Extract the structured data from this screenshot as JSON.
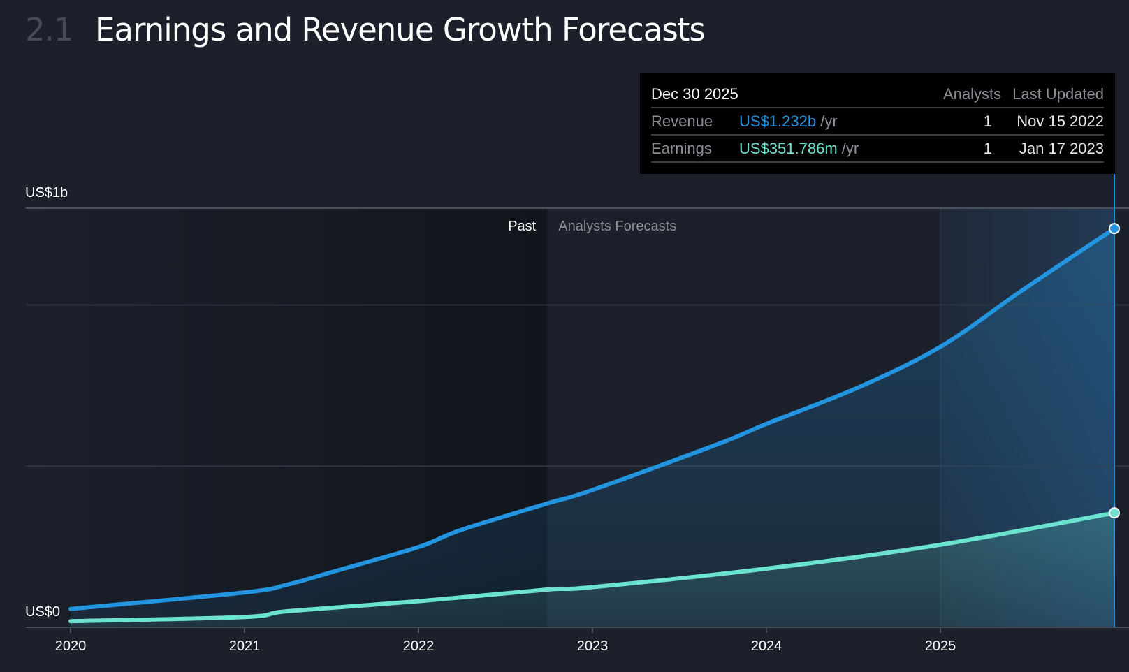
{
  "header": {
    "section_number": "2.1",
    "title": "Earnings and Revenue Growth Forecasts"
  },
  "tooltip": {
    "date": "Dec 30 2025",
    "col_analysts": "Analysts",
    "col_last_updated": "Last Updated",
    "rows": [
      {
        "label": "Revenue",
        "value": "US$1.232b",
        "unit": "/yr",
        "analysts": "1",
        "last_updated": "Nov 15 2022"
      },
      {
        "label": "Earnings",
        "value": "US$351.786m",
        "unit": "/yr",
        "analysts": "1",
        "last_updated": "Jan 17 2023"
      }
    ]
  },
  "colors": {
    "revenue": "#2394df",
    "earnings": "#6be3cf",
    "background": "#1b202b"
  },
  "chart_data": {
    "type": "line",
    "title": "Earnings and Revenue Growth Forecasts",
    "y_tick_labels": {
      "top": "US$1b",
      "bottom": "US$0"
    },
    "y_unit": "US$ billions",
    "ylim": [
      0,
      1.3
    ],
    "xlim": [
      2019.74,
      2026.0
    ],
    "x_ticks": [
      2020,
      2021,
      2022,
      2023,
      2024,
      2025
    ],
    "x_tick_labels": [
      "2020",
      "2021",
      "2022",
      "2023",
      "2024",
      "2025"
    ],
    "gridlines": [
      0.5,
      1.0
    ],
    "regions": {
      "past_label": "Past",
      "forecast_label": "Analysts Forecasts",
      "forecast_start": 2022.74,
      "highlight_start": 2025.0
    },
    "cursor_x": 2026.0,
    "series": [
      {
        "name": "Revenue",
        "x": [
          2020.0,
          2021.0,
          2021.25,
          2021.5,
          2022.0,
          2022.24,
          2022.74,
          2022.99,
          2023.73,
          2024.0,
          2024.52,
          2025.0,
          2025.47,
          2026.0
        ],
        "values": [
          0.057,
          0.108,
          0.133,
          0.171,
          0.249,
          0.301,
          0.384,
          0.424,
          0.57,
          0.631,
          0.742,
          0.87,
          1.045,
          1.237
        ]
      },
      {
        "name": "Earnings",
        "x": [
          2020.0,
          2021.0,
          2021.25,
          2022.0,
          2022.74,
          2022.99,
          2024.0,
          2025.0,
          2026.0
        ],
        "values": [
          0.019,
          0.032,
          0.05,
          0.081,
          0.117,
          0.124,
          0.182,
          0.256,
          0.355
        ]
      }
    ]
  }
}
